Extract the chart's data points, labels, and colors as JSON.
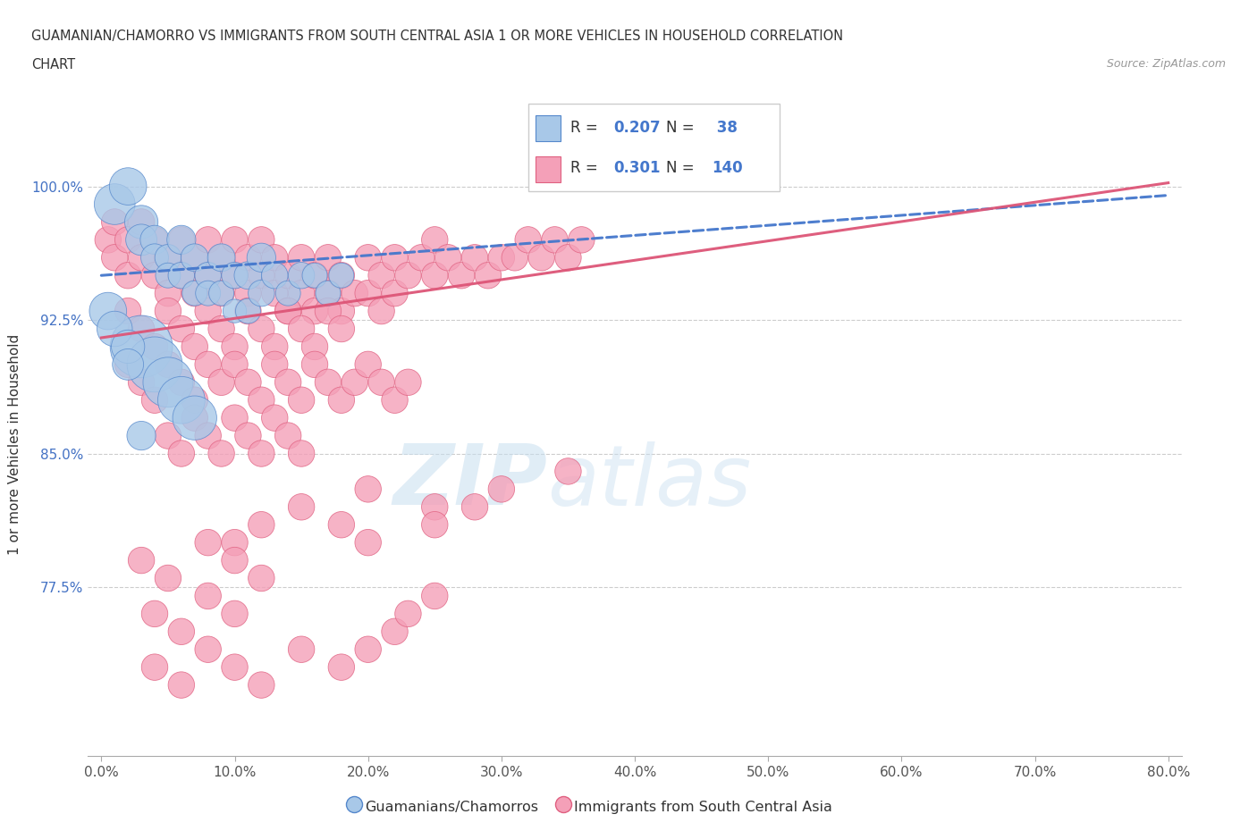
{
  "title_line1": "GUAMANIAN/CHAMORRO VS IMMIGRANTS FROM SOUTH CENTRAL ASIA 1 OR MORE VEHICLES IN HOUSEHOLD CORRELATION",
  "title_line2": "CHART",
  "source": "Source: ZipAtlas.com",
  "xlabel_ticks": [
    "0.0%",
    "10.0%",
    "20.0%",
    "30.0%",
    "40.0%",
    "50.0%",
    "60.0%",
    "70.0%",
    "80.0%"
  ],
  "xlabel_vals": [
    0,
    10,
    20,
    30,
    40,
    50,
    60,
    70,
    80
  ],
  "ylabel_ticks": [
    "77.5%",
    "85.0%",
    "92.5%",
    "100.0%"
  ],
  "ylabel_vals": [
    77.5,
    85.0,
    92.5,
    100.0
  ],
  "xlim": [
    -1,
    81
  ],
  "ylim": [
    68,
    103
  ],
  "blue_R": 0.207,
  "blue_N": 38,
  "pink_R": 0.301,
  "pink_N": 140,
  "blue_color": "#A8C8E8",
  "pink_color": "#F4A0B8",
  "blue_edge_color": "#5588CC",
  "pink_edge_color": "#E06080",
  "blue_line_color": "#4477CC",
  "pink_line_color": "#DD5577",
  "ylabel": "1 or more Vehicles in Household",
  "legend_blue_label": "Guamanians/Chamorros",
  "legend_pink_label": "Immigrants from South Central Asia",
  "blue_trend_x0": 0,
  "blue_trend_y0": 95.0,
  "blue_trend_x1": 80,
  "blue_trend_y1": 99.5,
  "pink_trend_x0": 0,
  "pink_trend_y0": 91.5,
  "pink_trend_x1": 80,
  "pink_trend_y1": 100.2,
  "blue_scatter_x": [
    1,
    2,
    3,
    3,
    4,
    4,
    5,
    5,
    6,
    6,
    7,
    7,
    8,
    8,
    9,
    9,
    10,
    10,
    11,
    11,
    12,
    12,
    13,
    14,
    15,
    16,
    17,
    18,
    3,
    4,
    5,
    6,
    7,
    0.5,
    1,
    2,
    2,
    3
  ],
  "blue_scatter_y": [
    99,
    100,
    98,
    97,
    97,
    96,
    96,
    95,
    97,
    95,
    96,
    94,
    95,
    94,
    96,
    94,
    95,
    93,
    95,
    93,
    96,
    94,
    95,
    94,
    95,
    95,
    94,
    95,
    91,
    90,
    89,
    88,
    87,
    93,
    92,
    91,
    90,
    86
  ],
  "blue_scatter_size": [
    120,
    100,
    80,
    70,
    60,
    55,
    50,
    45,
    60,
    50,
    55,
    45,
    50,
    45,
    55,
    45,
    50,
    40,
    55,
    45,
    60,
    50,
    50,
    45,
    50,
    45,
    45,
    45,
    280,
    220,
    180,
    160,
    140,
    100,
    90,
    80,
    70,
    60
  ],
  "pink_scatter_x": [
    0.5,
    1,
    1,
    2,
    2,
    3,
    3,
    4,
    4,
    5,
    5,
    6,
    6,
    7,
    7,
    8,
    8,
    9,
    9,
    10,
    10,
    11,
    11,
    12,
    12,
    13,
    13,
    14,
    14,
    15,
    15,
    16,
    16,
    17,
    17,
    18,
    18,
    19,
    20,
    20,
    21,
    21,
    22,
    22,
    23,
    24,
    25,
    25,
    26,
    27,
    28,
    29,
    30,
    31,
    32,
    33,
    34,
    35,
    36,
    2,
    3,
    4,
    5,
    6,
    7,
    8,
    9,
    10,
    11,
    12,
    13,
    14,
    15,
    16,
    17,
    18,
    2,
    3,
    4,
    5,
    6,
    7,
    8,
    9,
    10,
    11,
    12,
    13,
    14,
    15,
    16,
    17,
    18,
    19,
    20,
    21,
    22,
    23,
    5,
    6,
    7,
    8,
    9,
    10,
    11,
    12,
    13,
    14,
    15,
    20,
    25,
    10,
    12,
    15,
    18,
    20,
    25,
    28,
    30,
    35,
    3,
    5,
    8,
    10,
    12,
    4,
    6,
    8,
    10,
    4,
    6,
    8,
    10,
    12,
    15,
    18,
    20,
    22,
    23,
    25
  ],
  "pink_scatter_y": [
    97,
    98,
    96,
    97,
    95,
    98,
    96,
    97,
    95,
    96,
    94,
    97,
    95,
    96,
    94,
    97,
    95,
    96,
    94,
    97,
    95,
    96,
    94,
    97,
    95,
    96,
    94,
    95,
    93,
    96,
    94,
    95,
    93,
    96,
    94,
    95,
    93,
    94,
    96,
    94,
    95,
    93,
    96,
    94,
    95,
    96,
    97,
    95,
    96,
    95,
    96,
    95,
    96,
    96,
    97,
    96,
    97,
    96,
    97,
    93,
    92,
    91,
    93,
    92,
    91,
    93,
    92,
    91,
    93,
    92,
    91,
    93,
    92,
    91,
    93,
    92,
    90,
    89,
    88,
    90,
    89,
    88,
    90,
    89,
    90,
    89,
    88,
    90,
    89,
    88,
    90,
    89,
    88,
    89,
    90,
    89,
    88,
    89,
    86,
    85,
    87,
    86,
    85,
    87,
    86,
    85,
    87,
    86,
    85,
    83,
    82,
    80,
    81,
    82,
    81,
    80,
    81,
    82,
    83,
    84,
    79,
    78,
    80,
    79,
    78,
    76,
    75,
    77,
    76,
    73,
    72,
    74,
    73,
    72,
    74,
    73,
    74,
    75,
    76,
    77
  ],
  "pink_scatter_size": [
    50,
    50,
    50,
    50,
    50,
    50,
    50,
    50,
    50,
    50,
    50,
    50,
    50,
    50,
    50,
    50,
    50,
    50,
    50,
    50,
    50,
    50,
    50,
    50,
    50,
    50,
    50,
    50,
    50,
    50,
    50,
    50,
    50,
    50,
    50,
    50,
    50,
    50,
    50,
    50,
    50,
    50,
    50,
    50,
    50,
    50,
    50,
    50,
    50,
    50,
    50,
    50,
    50,
    50,
    50,
    50,
    50,
    50,
    50,
    50,
    50,
    50,
    50,
    50,
    50,
    50,
    50,
    50,
    50,
    50,
    50,
    50,
    50,
    50,
    50,
    50,
    50,
    50,
    50,
    50,
    50,
    50,
    50,
    50,
    50,
    50,
    50,
    50,
    50,
    50,
    50,
    50,
    50,
    50,
    50,
    50,
    50,
    50,
    50,
    50,
    50,
    50,
    50,
    50,
    50,
    50,
    50,
    50,
    50,
    50,
    50,
    50,
    50,
    50,
    50,
    50,
    50,
    50,
    50,
    50,
    50,
    50,
    50,
    50,
    50,
    50,
    50,
    50,
    50,
    50,
    50,
    50,
    50,
    50,
    50,
    50,
    50,
    50,
    50,
    50
  ]
}
